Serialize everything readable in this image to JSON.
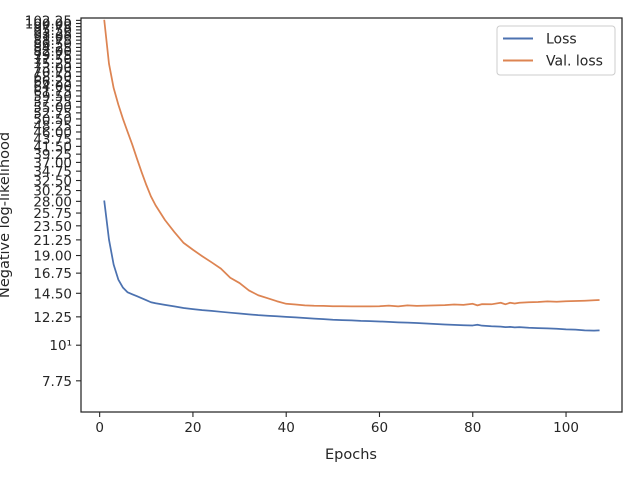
{
  "chart_data": {
    "type": "line",
    "title": "",
    "xlabel": "Epochs",
    "ylabel": "Negative log-likelihood",
    "xlim": [
      -4,
      112
    ],
    "ylim": [
      6.2,
      104
    ],
    "yscale": "log",
    "grid": false,
    "legend_position": "top-right",
    "x_ticks": [
      0,
      20,
      40,
      60,
      80,
      100
    ],
    "x_tick_labels": [
      "0",
      "20",
      "40",
      "60",
      "80",
      "100"
    ],
    "y_ticks": [
      7.75,
      10,
      12.25,
      14.5,
      16.75,
      19.0,
      21.25,
      23.5,
      25.75,
      28.0,
      30.25,
      32.5,
      34.75,
      37.0,
      39.25,
      41.5,
      43.75,
      46.0,
      48.25,
      50.5,
      52.75,
      55.0,
      57.25,
      59.5,
      61.75,
      64.0,
      66.25,
      68.5,
      70.75,
      73.0,
      75.25,
      77.5,
      79.75,
      82.0,
      84.25,
      86.5,
      88.75,
      91.0,
      93.25,
      95.5,
      97.75,
      100.0,
      102.25
    ],
    "y_tick_labels": [
      "7.75",
      "10¹",
      "12.25",
      "14.50",
      "16.75",
      "19.00",
      "21.25",
      "23.50",
      "25.75",
      "28.00",
      "30.25",
      "32.50",
      "34.75",
      "37.00",
      "39.25",
      "41.50",
      "43.75",
      "46.00",
      "48.25",
      "50.50",
      "52.75",
      "55.00",
      "57.25",
      "59.50",
      "61.75",
      "64.00",
      "66.25",
      "68.50",
      "70.75",
      "73.00",
      "75.25",
      "77.50",
      "79.75",
      "82.00",
      "84.25",
      "86.50",
      "88.75",
      "91.00",
      "93.25",
      "95.50",
      "97.75",
      "100.00",
      "102.25"
    ],
    "series": [
      {
        "name": "Loss",
        "color": "#4c72b0",
        "x": [
          1,
          2,
          3,
          4,
          5,
          6,
          7,
          8,
          9,
          10,
          11,
          12,
          14,
          16,
          18,
          20,
          22,
          24,
          26,
          28,
          30,
          32,
          34,
          36,
          38,
          40,
          42,
          44,
          46,
          48,
          50,
          52,
          54,
          56,
          58,
          60,
          62,
          64,
          66,
          68,
          70,
          72,
          74,
          76,
          78,
          80,
          81,
          82,
          84,
          86,
          87,
          88,
          89,
          90,
          92,
          94,
          96,
          98,
          100,
          102,
          104,
          106,
          107
        ],
        "y": [
          28.0,
          21.3,
          17.8,
          16.0,
          15.1,
          14.6,
          14.4,
          14.2,
          14.0,
          13.8,
          13.6,
          13.5,
          13.35,
          13.2,
          13.05,
          12.95,
          12.85,
          12.78,
          12.7,
          12.62,
          12.55,
          12.47,
          12.4,
          12.35,
          12.3,
          12.25,
          12.2,
          12.15,
          12.1,
          12.05,
          12.0,
          11.97,
          11.94,
          11.9,
          11.88,
          11.85,
          11.82,
          11.78,
          11.75,
          11.72,
          11.68,
          11.64,
          11.6,
          11.57,
          11.54,
          11.52,
          11.58,
          11.5,
          11.45,
          11.42,
          11.38,
          11.4,
          11.36,
          11.38,
          11.33,
          11.3,
          11.28,
          11.25,
          11.2,
          11.18,
          11.12,
          11.1,
          11.12
        ]
      },
      {
        "name": "Val. loss",
        "color": "#dd8452",
        "x": [
          1,
          2,
          3,
          4,
          5,
          6,
          7,
          8,
          9,
          10,
          11,
          12,
          14,
          16,
          18,
          20,
          22,
          24,
          26,
          28,
          30,
          32,
          34,
          36,
          38,
          40,
          42,
          44,
          46,
          48,
          50,
          52,
          54,
          56,
          58,
          60,
          62,
          64,
          66,
          68,
          70,
          72,
          74,
          76,
          78,
          80,
          81,
          82,
          84,
          86,
          87,
          88,
          89,
          90,
          92,
          94,
          96,
          98,
          100,
          102,
          104,
          106,
          107
        ],
        "y": [
          102.0,
          75.0,
          63.0,
          56.0,
          50.5,
          46.0,
          42.0,
          38.0,
          34.5,
          31.5,
          29.0,
          27.2,
          24.5,
          22.5,
          20.8,
          19.8,
          18.9,
          18.1,
          17.3,
          16.2,
          15.6,
          14.8,
          14.3,
          14.0,
          13.7,
          13.45,
          13.38,
          13.3,
          13.26,
          13.25,
          13.22,
          13.22,
          13.2,
          13.2,
          13.2,
          13.22,
          13.28,
          13.2,
          13.3,
          13.25,
          13.28,
          13.3,
          13.32,
          13.38,
          13.35,
          13.45,
          13.3,
          13.42,
          13.4,
          13.55,
          13.4,
          13.55,
          13.48,
          13.55,
          13.6,
          13.62,
          13.68,
          13.65,
          13.7,
          13.72,
          13.75,
          13.8,
          13.82
        ]
      }
    ]
  }
}
